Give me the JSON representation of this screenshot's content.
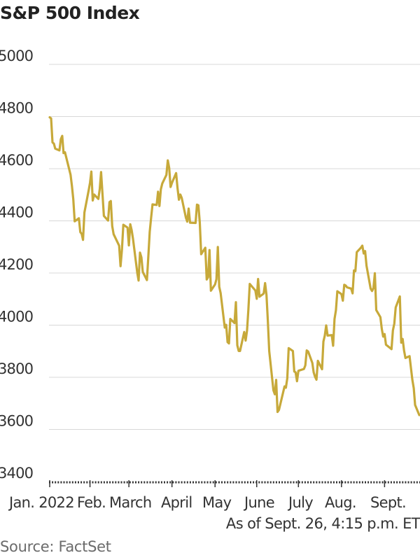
{
  "chart_data": {
    "type": "line",
    "title": "S&P 500 Index",
    "ylim": [
      3400,
      5000
    ],
    "yticks": [
      5000,
      4800,
      4600,
      4400,
      4200,
      4000,
      3800,
      3600,
      3400
    ],
    "ytick_labels": [
      "5000",
      "4800",
      "4600",
      "4400",
      "4200",
      "4000",
      "3800",
      "3600",
      "3400"
    ],
    "x_month_labels": [
      "Jan. 2022",
      "Feb.",
      "March",
      "April",
      "May",
      "June",
      "July",
      "Aug.",
      "Sept."
    ],
    "grid": true,
    "line_color": "#c7a93a",
    "series": [
      {
        "x": [
          "2022-01-03",
          "2022-01-04",
          "2022-01-05",
          "2022-01-06",
          "2022-01-07",
          "2022-01-10",
          "2022-01-11",
          "2022-01-12",
          "2022-01-13",
          "2022-01-14",
          "2022-01-18",
          "2022-01-19",
          "2022-01-20",
          "2022-01-21",
          "2022-01-24",
          "2022-01-25",
          "2022-01-26",
          "2022-01-27",
          "2022-01-28",
          "2022-01-31",
          "2022-02-01",
          "2022-02-02",
          "2022-02-03",
          "2022-02-04",
          "2022-02-07",
          "2022-02-08",
          "2022-02-09",
          "2022-02-10",
          "2022-02-11",
          "2022-02-14",
          "2022-02-15",
          "2022-02-16",
          "2022-02-17",
          "2022-02-18",
          "2022-02-22",
          "2022-02-23",
          "2022-02-24",
          "2022-02-25",
          "2022-02-28",
          "2022-03-01",
          "2022-03-02",
          "2022-03-03",
          "2022-03-04",
          "2022-03-07",
          "2022-03-08",
          "2022-03-09",
          "2022-03-10",
          "2022-03-11",
          "2022-03-14",
          "2022-03-15",
          "2022-03-16",
          "2022-03-17",
          "2022-03-18",
          "2022-03-21",
          "2022-03-22",
          "2022-03-23",
          "2022-03-24",
          "2022-03-25",
          "2022-03-28",
          "2022-03-29",
          "2022-03-30",
          "2022-03-31",
          "2022-04-01",
          "2022-04-04",
          "2022-04-05",
          "2022-04-06",
          "2022-04-07",
          "2022-04-08",
          "2022-04-11",
          "2022-04-12",
          "2022-04-13",
          "2022-04-14",
          "2022-04-18",
          "2022-04-19",
          "2022-04-20",
          "2022-04-21",
          "2022-04-22",
          "2022-04-25",
          "2022-04-26",
          "2022-04-27",
          "2022-04-28",
          "2022-04-29",
          "2022-05-02",
          "2022-05-03",
          "2022-05-04",
          "2022-05-05",
          "2022-05-06",
          "2022-05-09",
          "2022-05-10",
          "2022-05-11",
          "2022-05-12",
          "2022-05-13",
          "2022-05-16",
          "2022-05-17",
          "2022-05-18",
          "2022-05-19",
          "2022-05-20",
          "2022-05-23",
          "2022-05-24",
          "2022-05-25",
          "2022-05-26",
          "2022-05-27",
          "2022-05-31",
          "2022-06-01",
          "2022-06-02",
          "2022-06-03",
          "2022-06-06",
          "2022-06-07",
          "2022-06-08",
          "2022-06-09",
          "2022-06-10",
          "2022-06-13",
          "2022-06-14",
          "2022-06-15",
          "2022-06-16",
          "2022-06-17",
          "2022-06-21",
          "2022-06-22",
          "2022-06-23",
          "2022-06-24",
          "2022-06-27",
          "2022-06-28",
          "2022-06-29",
          "2022-06-30",
          "2022-07-01",
          "2022-07-05",
          "2022-07-06",
          "2022-07-07",
          "2022-07-08",
          "2022-07-11",
          "2022-07-12",
          "2022-07-13",
          "2022-07-14",
          "2022-07-15",
          "2022-07-18",
          "2022-07-19",
          "2022-07-20",
          "2022-07-21",
          "2022-07-22",
          "2022-07-25",
          "2022-07-26",
          "2022-07-27",
          "2022-07-28",
          "2022-07-29",
          "2022-08-01",
          "2022-08-02",
          "2022-08-03",
          "2022-08-04",
          "2022-08-05",
          "2022-08-08",
          "2022-08-09",
          "2022-08-10",
          "2022-08-11",
          "2022-08-12",
          "2022-08-15",
          "2022-08-16",
          "2022-08-17",
          "2022-08-18",
          "2022-08-19",
          "2022-08-22",
          "2022-08-23",
          "2022-08-24",
          "2022-08-25",
          "2022-08-26",
          "2022-08-29",
          "2022-08-30",
          "2022-08-31",
          "2022-09-01",
          "2022-09-02",
          "2022-09-06",
          "2022-09-07",
          "2022-09-08",
          "2022-09-09",
          "2022-09-12",
          "2022-09-13",
          "2022-09-14",
          "2022-09-15",
          "2022-09-16",
          "2022-09-19",
          "2022-09-20",
          "2022-09-21",
          "2022-09-22",
          "2022-09-23",
          "2022-09-26"
        ],
        "values": [
          4797,
          4793,
          4701,
          4696,
          4677,
          4670,
          4713,
          4726,
          4660,
          4663,
          4577,
          4533,
          4483,
          4398,
          4410,
          4357,
          4350,
          4327,
          4432,
          4516,
          4546,
          4589,
          4478,
          4501,
          4484,
          4522,
          4587,
          4504,
          4419,
          4401,
          4472,
          4476,
          4380,
          4349,
          4305,
          4226,
          4289,
          4385,
          4374,
          4306,
          4387,
          4364,
          4329,
          4201,
          4171,
          4278,
          4260,
          4204,
          4173,
          4263,
          4358,
          4412,
          4463,
          4461,
          4512,
          4457,
          4521,
          4543,
          4576,
          4632,
          4603,
          4530,
          4546,
          4583,
          4526,
          4481,
          4501,
          4488,
          4413,
          4397,
          4447,
          4393,
          4392,
          4462,
          4460,
          4394,
          4272,
          4297,
          4175,
          4184,
          4288,
          4132,
          4156,
          4176,
          4300,
          4147,
          4123,
          3991,
          4001,
          3935,
          3930,
          4024,
          4008,
          4088,
          3923,
          3901,
          3901,
          3974,
          3941,
          3979,
          4058,
          4158,
          4133,
          4101,
          4177,
          4109,
          4121,
          4161,
          4116,
          4018,
          3901,
          3750,
          3735,
          3790,
          3667,
          3675,
          3765,
          3760,
          3796,
          3912,
          3901,
          3822,
          3819,
          3785,
          3825,
          3832,
          3846,
          3903,
          3899,
          3855,
          3819,
          3802,
          3791,
          3863,
          3831,
          3937,
          3960,
          3999,
          3960,
          3962,
          3921,
          4024,
          4057,
          4130,
          4119,
          4094,
          4155,
          4152,
          4145,
          4140,
          4122,
          4210,
          4207,
          4280,
          4297,
          4305,
          4275,
          4284,
          4228,
          4140,
          4131,
          4142,
          4199,
          4058,
          4031,
          3986,
          3956,
          3966,
          3925,
          3908,
          3980,
          4006,
          4068,
          4110,
          3933,
          3947,
          3903,
          3874,
          3881,
          3835,
          3790,
          3758,
          3694,
          3655
        ]
      }
    ]
  },
  "caption": {
    "as_of": "As of Sept. 26, 4:15 p.m. ET",
    "source": "Source: FactSet"
  }
}
